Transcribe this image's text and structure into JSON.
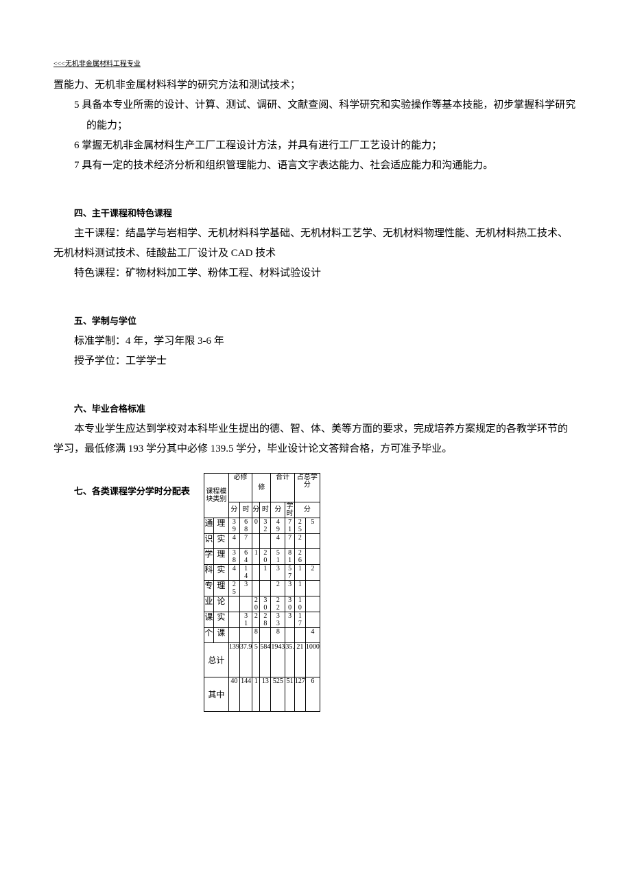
{
  "header_link": "<<<无机非金属材料工程专业",
  "body": {
    "line_top": "置能力、无机非金属材料科学的研究方法和测试技术；",
    "item5": "5 具备本专业所需的设计、计算、测试、调研、文献查阅、科学研究和实验操作等基本技能，初步掌握科学研究的能力；",
    "item6": "6 掌握无机非金属材料生产工厂工程设计方法，并具有进行工厂工艺设计的能力；",
    "item7": "7 具有一定的技术经济分析和组织管理能力、语言文字表达能力、社会适应能力和沟通能力。"
  },
  "section4": {
    "title": "四、主干课程和特色课程",
    "p1": "主干课程：结晶学与岩相学、无机材料科学基础、无机材料工艺学、无机材料物理性能、无机材料热工技术、无机材料测试技术、硅酸盐工厂设计及 CAD 技术",
    "p2": "特色课程：矿物材料加工学、粉体工程、材料试验设计"
  },
  "section5": {
    "title": "五、学制与学位",
    "p1": "标准学制：4 年，学习年限 3-6 年",
    "p2": "授予学位：工学学士"
  },
  "section6": {
    "title": "六、毕业合格标准",
    "p1": "本专业学生应达到学校对本科毕业生提出的德、智、体、美等方面的要求，完成培养方案规定的各教学环节的学习，最低修满 193 学分其中必修 139.5 学分，毕业设计论文答辩合格，方可准予毕业。"
  },
  "section7": {
    "title": "七、各类课程学分学时分配表",
    "headers": {
      "col1_top": "课程模块类别",
      "bixiu": "必修",
      "xiu": "修",
      "heji": "合计",
      "zhanzong": "占总学分",
      "xuefen": "分",
      "xueshi": "时",
      "xuefen2": "学分",
      "xueshi2": "学时"
    },
    "rows": [
      {
        "a": "通",
        "b": "理",
        "c1": "3",
        "c2": "9",
        "d1": "6",
        "d2": "8",
        "e1": "",
        "e2": "0",
        "f1": "3",
        "f2": "2",
        "g1": "4",
        "g2": "9",
        "h1": "7",
        "h2": "1",
        "i1": "2",
        "i2": "5",
        "j1": "",
        "j2": "5"
      },
      {
        "a": "识",
        "b": "实",
        "c1": "4",
        "c2": "",
        "d1": "7",
        "d2": "",
        "e1": "",
        "e2": "",
        "f1": "",
        "f2": "",
        "g1": "4",
        "g2": "",
        "h1": "7",
        "h2": "",
        "i1": "2",
        "i2": "",
        "j1": "",
        "j2": ""
      },
      {
        "a": "学",
        "b": "理",
        "c1": "3",
        "c2": "8",
        "d1": "6",
        "d2": "4",
        "e1": "1",
        "e2": "",
        "f1": "2",
        "f2": "0",
        "g1": "5",
        "g2": "1",
        "h1": "8",
        "h2": "1",
        "i1": "2",
        "i2": "6",
        "j1": "",
        "j2": ""
      },
      {
        "a": "科",
        "b": "实",
        "c1": "4",
        "c2": "",
        "d1": "1",
        "d2": "4",
        "e1": "",
        "e2": "",
        "f1": "1",
        "f2": "",
        "g1": "3",
        "g2": "",
        "h1": "5",
        "h2": "7",
        "i1": "1",
        "i2": "",
        "j1": "2",
        "j2": ""
      },
      {
        "a": "专",
        "b": "理",
        "c1": "2",
        "c2": "5",
        "d1": "3",
        "d2": "",
        "e1": "",
        "e2": "",
        "f1": "",
        "f2": "",
        "g1": "2",
        "g2": "",
        "h1": "3",
        "h2": "",
        "i1": "1",
        "i2": "",
        "j1": "",
        "j2": ""
      },
      {
        "a": "业",
        "b": "论",
        "c1": "",
        "c2": "",
        "d1": "",
        "d2": "",
        "e1": "2",
        "e2": "0",
        "f1": "3",
        "f2": "0",
        "g1": "2",
        "g2": "2",
        "h1": "3",
        "h2": "0",
        "i1": "1",
        "i2": "0",
        "j1": "",
        "j2": ""
      },
      {
        "a": "课",
        "b": "实",
        "c1": "",
        "c2": "",
        "d1": "3",
        "d2": "1",
        "e1": "2",
        "e2": "",
        "f1": "2",
        "f2": "8",
        "g1": "3",
        "g2": "3",
        "h1": "3",
        "h2": "",
        "i1": "1",
        "i2": "7",
        "j1": "",
        "j2": ""
      },
      {
        "a": "个",
        "b": "课",
        "c1": "",
        "c2": "",
        "d1": "",
        "d2": "",
        "e1": "",
        "e2": "8",
        "f1": "",
        "f2": "",
        "g1": "",
        "g2": "8",
        "h1": "",
        "h2": "",
        "i1": "",
        "i2": "",
        "j1": "4",
        "j2": ""
      }
    ],
    "total": {
      "label": "总计",
      "c": "139",
      "d": "37.9",
      "e": "5",
      "f": "584",
      "g": "1943",
      "h": "35.",
      "i": "21",
      "j": "1000"
    },
    "qizhong": {
      "label": "其中",
      "c": "40",
      "d": "144",
      "e": "1",
      "f": "13",
      "g": "525",
      "h": "51",
      "i": "127",
      "j": "6"
    }
  }
}
